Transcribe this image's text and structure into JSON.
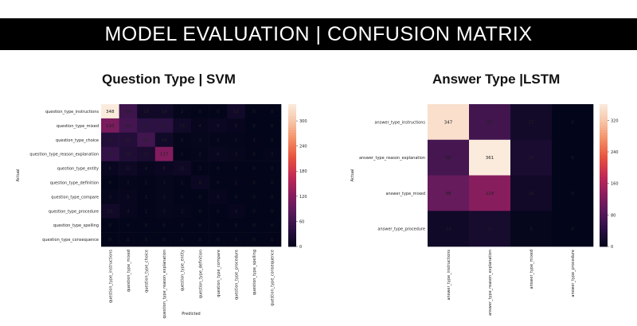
{
  "banner": {
    "title": "MODEL EVALUATION | CONFUSION MATRIX"
  },
  "colormap": [
    "#03051a",
    "#2d1144",
    "#5c1a5c",
    "#8f1d5e",
    "#c42b53",
    "#e8523e",
    "#f38d64",
    "#f6c4a6",
    "#faebdd"
  ],
  "chart_data": [
    {
      "type": "heatmap",
      "title": "Question Type | SVM",
      "xlabel": "Predicted",
      "ylabel": "Actual",
      "rows": [
        "question_type_instructions",
        "question_type_mixed",
        "question_type_choice",
        "question_type_reason_explanation",
        "question_type_entity",
        "question_type_definition",
        "question_type_compare",
        "question_type_procedure",
        "question_type_spelling",
        "question_type_consequence"
      ],
      "columns": [
        "question_type_instructions",
        "question_type_mixed",
        "question_type_choice",
        "question_type_reason_explanation",
        "question_type_entity",
        "question_type_definition",
        "question_type_compare",
        "question_type_procedure",
        "question_type_spelling",
        "question_type_consequence"
      ],
      "values": [
        [
          348,
          58,
          15,
          14,
          2,
          0,
          0,
          15,
          0,
          0
        ],
        [
          110,
          63,
          41,
          41,
          13,
          4,
          8,
          5,
          0,
          0
        ],
        [
          31,
          31,
          61,
          14,
          2,
          3,
          2,
          2,
          1,
          0
        ],
        [
          48,
          28,
          23,
          117,
          1,
          2,
          6,
          3,
          0,
          2
        ],
        [
          6,
          11,
          4,
          8,
          11,
          1,
          0,
          0,
          0,
          0
        ],
        [
          0,
          2,
          1,
          3,
          1,
          8,
          0,
          1,
          0,
          0
        ],
        [
          3,
          5,
          1,
          3,
          0,
          0,
          5,
          0,
          0,
          0
        ],
        [
          15,
          4,
          1,
          3,
          2,
          0,
          0,
          4,
          0,
          0
        ],
        [
          0,
          0,
          0,
          0,
          0,
          0,
          0,
          0,
          0,
          0
        ],
        [
          0,
          1,
          0,
          0,
          0,
          0,
          0,
          0,
          0,
          1
        ]
      ],
      "zlim": [
        0,
        340
      ],
      "colorbar_ticks": [
        0,
        60,
        120,
        180,
        240,
        300
      ]
    },
    {
      "type": "heatmap",
      "title": "Answer Type |LSTM",
      "xlabel": "",
      "ylabel": "Actual",
      "rows": [
        "answer_type_instructions",
        "answer_type_reason_explanation",
        "answer_type_mixed",
        "answer_type_procedure"
      ],
      "columns": [
        "answer_type_instructions",
        "answer_type_reason_explanation",
        "answer_type_mixed",
        "answer_type_procedure"
      ],
      "values": [
        [
          347,
          65,
          17,
          0
        ],
        [
          68,
          361,
          25,
          0
        ],
        [
          98,
          129,
          16,
          0
        ],
        [
          14,
          21,
          3,
          0
        ]
      ],
      "zlim": [
        0,
        361
      ],
      "colorbar_ticks": [
        0,
        80,
        160,
        240,
        320
      ]
    }
  ]
}
